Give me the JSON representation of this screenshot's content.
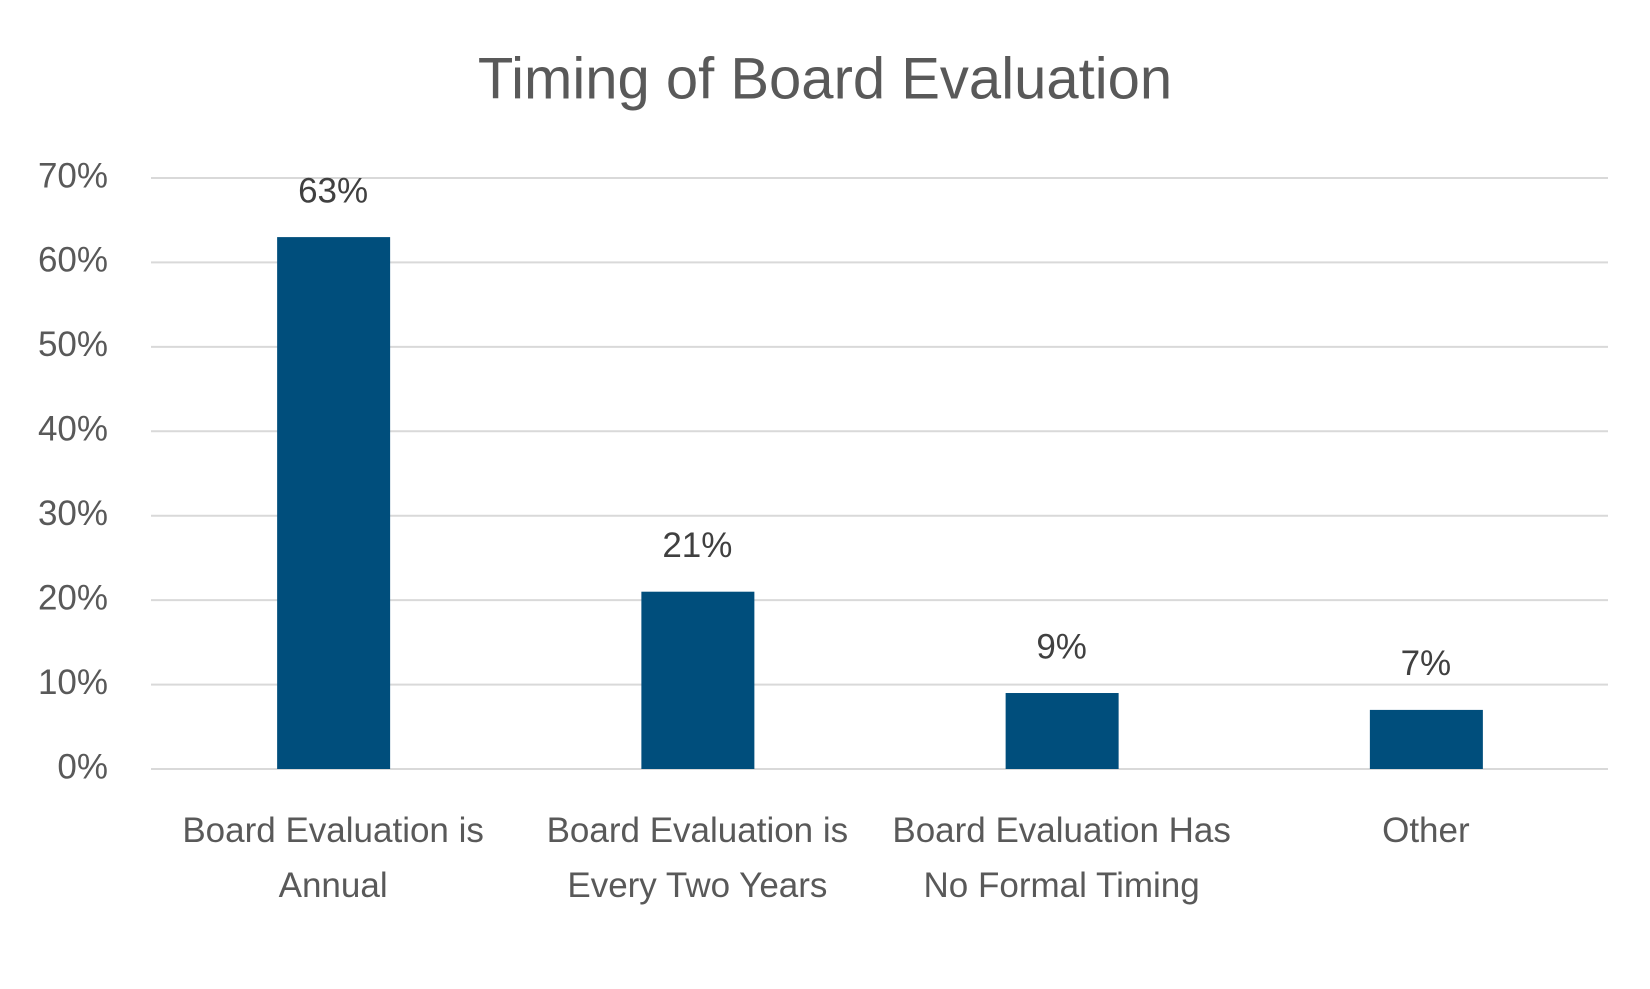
{
  "chart_data": {
    "type": "bar",
    "title": "Timing of Board Evaluation",
    "categories": [
      "Board Evaluation is Annual",
      "Board Evaluation is Every Two Years",
      "Board Evaluation Has No Formal Timing",
      "Other"
    ],
    "values": [
      63,
      21,
      9,
      7
    ],
    "value_labels": [
      "63%",
      "21%",
      "9%",
      "7%"
    ],
    "color": "#004e7c",
    "ylim": [
      0,
      70
    ],
    "yticks": [
      {
        "value": 0,
        "label": "0%"
      },
      {
        "value": 10,
        "label": "10%"
      },
      {
        "value": 20,
        "label": "20%"
      },
      {
        "value": 30,
        "label": "30%"
      },
      {
        "value": 40,
        "label": "40%"
      },
      {
        "value": 50,
        "label": "50%"
      },
      {
        "value": 60,
        "label": "60%"
      },
      {
        "value": 70,
        "label": "70%"
      }
    ],
    "grid": true
  }
}
